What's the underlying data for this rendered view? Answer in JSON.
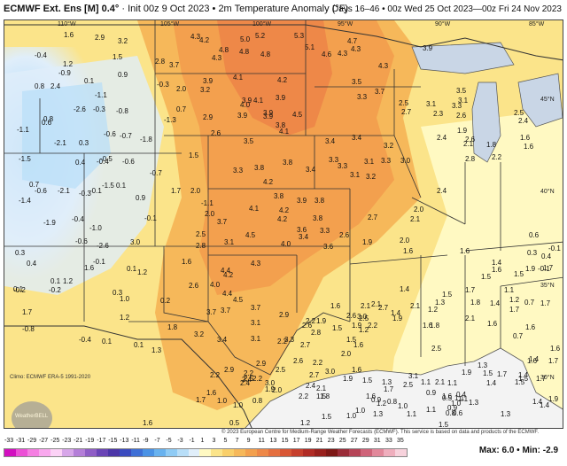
{
  "header": {
    "model": "ECMWF Ext. Ens [M] 0.4°",
    "init": "Init 00z 9 Oct 2023",
    "variable": "2m Temperature Anomaly (°F)",
    "valid": "Days 16–46 • 00z Wed 25 Oct 2023—00z Fri 24 Nov 2023"
  },
  "lon_labels": [
    "110°W",
    "105°W",
    "100°W",
    "95°W",
    "90°W",
    "85°W"
  ],
  "lat_labels": [
    "45°N",
    "40°N",
    "35°N",
    "30°N"
  ],
  "values": [
    {
      "t": "1.6"
    },
    {
      "t": "2.9"
    },
    {
      "t": "3.2"
    },
    {
      "t": "-0.4"
    },
    {
      "t": "1.5"
    },
    {
      "t": "1.2"
    },
    {
      "t": "-0.9"
    },
    {
      "t": "0.9"
    },
    {
      "t": "0.1"
    },
    {
      "t": "0.8"
    },
    {
      "t": "2.4"
    },
    {
      "t": "-0.3"
    },
    {
      "t": "-1.1"
    },
    {
      "t": "-2.6"
    },
    {
      "t": "-0.3"
    },
    {
      "t": "-0.8"
    },
    {
      "t": "0.8"
    },
    {
      "t": "-1.3"
    },
    {
      "t": "-1.1"
    },
    {
      "t": "0.6"
    },
    {
      "t": "-0.6"
    },
    {
      "t": "-0.7"
    },
    {
      "t": "-1.8"
    },
    {
      "t": "-2.1"
    },
    {
      "t": "0.3"
    },
    {
      "t": "-0.5"
    },
    {
      "t": "-1.5"
    },
    {
      "t": "0.4"
    },
    {
      "t": "-0.4"
    },
    {
      "t": "-0.6"
    },
    {
      "t": "-0.7"
    },
    {
      "t": "4.3"
    },
    {
      "t": "4.2"
    },
    {
      "t": "5.0"
    },
    {
      "t": "5.2"
    },
    {
      "t": "5.3"
    },
    {
      "t": "4.8"
    },
    {
      "t": "4.3"
    },
    {
      "t": "4.8"
    },
    {
      "t": "4.8"
    },
    {
      "t": "5.1"
    },
    {
      "t": "4.6"
    },
    {
      "t": "4.3"
    },
    {
      "t": "3.7"
    },
    {
      "t": "2.8"
    },
    {
      "t": "3.9"
    },
    {
      "t": "4.1"
    },
    {
      "t": "4.2"
    },
    {
      "t": "2.0"
    },
    {
      "t": "3.2"
    },
    {
      "t": "3.9"
    },
    {
      "t": "4.1"
    },
    {
      "t": "3.9"
    },
    {
      "t": "4.0"
    },
    {
      "t": "4.5"
    },
    {
      "t": "3.9"
    },
    {
      "t": "0.7"
    },
    {
      "t": "2.9"
    },
    {
      "t": "3.9"
    },
    {
      "t": "3.9"
    },
    {
      "t": "3.8"
    },
    {
      "t": "4.1"
    },
    {
      "t": "2.6"
    },
    {
      "t": "3.5"
    },
    {
      "t": "4.7"
    },
    {
      "t": "4.3"
    },
    {
      "t": "3.9"
    },
    {
      "t": "4.3"
    },
    {
      "t": "3.7"
    },
    {
      "t": "3.5"
    },
    {
      "t": "3.3"
    },
    {
      "t": "2.5"
    },
    {
      "t": "2.7"
    },
    {
      "t": "3.1"
    },
    {
      "t": "3.3"
    },
    {
      "t": "3.1"
    },
    {
      "t": "3.5"
    },
    {
      "t": "2.3"
    },
    {
      "t": "2.6"
    },
    {
      "t": "2.5"
    },
    {
      "t": "2.4"
    },
    {
      "t": "1.9"
    },
    {
      "t": "2.6"
    },
    {
      "t": "2.4"
    },
    {
      "t": "2.8"
    },
    {
      "t": "2.1"
    },
    {
      "t": "1.8"
    },
    {
      "t": "2.2"
    },
    {
      "t": "1.6"
    },
    {
      "t": "1.6"
    },
    {
      "t": "3.4"
    },
    {
      "t": "3.4"
    },
    {
      "t": "3.2"
    },
    {
      "t": "3.3"
    },
    {
      "t": "3.3"
    },
    {
      "t": "3.0"
    },
    {
      "t": "1.5"
    },
    {
      "t": "3.3"
    },
    {
      "t": "3.8"
    },
    {
      "t": "3.8"
    },
    {
      "t": "3.4"
    },
    {
      "t": "3.3"
    },
    {
      "t": "3.1"
    },
    {
      "t": "3.2"
    },
    {
      "t": "3.1"
    },
    {
      "t": "4.2"
    },
    {
      "t": "3.8"
    },
    {
      "t": "4.2"
    },
    {
      "t": "3.9"
    },
    {
      "t": "3.8"
    },
    {
      "t": "4.1"
    },
    {
      "t": "4.2"
    },
    {
      "t": "3.7"
    },
    {
      "t": "4.5"
    },
    {
      "t": "3.6"
    },
    {
      "t": "3.3"
    },
    {
      "t": "3.8"
    },
    {
      "t": "3.4"
    },
    {
      "t": "4.0"
    },
    {
      "t": "3.6"
    },
    {
      "t": "2.6"
    },
    {
      "t": "2.7"
    },
    {
      "t": "1.9"
    },
    {
      "t": "2.1"
    },
    {
      "t": "2.0"
    },
    {
      "t": "2.0"
    },
    {
      "t": "2.4"
    },
    {
      "t": "0.7"
    },
    {
      "t": "-0.6"
    },
    {
      "t": "-1.4"
    },
    {
      "t": "-2.1"
    },
    {
      "t": "-0.3"
    },
    {
      "t": "-0.1"
    },
    {
      "t": "-1.5"
    },
    {
      "t": "0.1"
    },
    {
      "t": "0.9"
    },
    {
      "t": "1.7"
    },
    {
      "t": "2.0"
    },
    {
      "t": "-1.1"
    },
    {
      "t": "-1.9"
    },
    {
      "t": "-0.4"
    },
    {
      "t": "-1.0"
    },
    {
      "t": "-0.1"
    },
    {
      "t": "-0.6"
    },
    {
      "t": "-2.6"
    },
    {
      "t": "3.0"
    },
    {
      "t": "2.5"
    },
    {
      "t": "2.8"
    },
    {
      "t": "3.1"
    },
    {
      "t": "2.0"
    },
    {
      "t": "-0.1"
    },
    {
      "t": "0.3"
    },
    {
      "t": "0.4"
    },
    {
      "t": "1.4"
    },
    {
      "t": "1.6"
    },
    {
      "t": "1.5"
    },
    {
      "t": "1.9"
    },
    {
      "t": "1.7"
    },
    {
      "t": "1.6"
    },
    {
      "t": "1.5"
    },
    {
      "t": "1.6"
    },
    {
      "t": "1.7"
    },
    {
      "t": "1.8"
    },
    {
      "t": "1.5"
    },
    {
      "t": "1.3"
    },
    {
      "t": "1.4"
    },
    {
      "t": "1.2"
    },
    {
      "t": "1.1"
    },
    {
      "t": "1.2"
    },
    {
      "t": "1.4"
    },
    {
      "t": "0.7"
    },
    {
      "t": "0.3"
    },
    {
      "t": "0.4"
    },
    {
      "t": "0.6"
    },
    {
      "t": "-0.1"
    },
    {
      "t": "-0.1"
    },
    {
      "t": "1.6"
    },
    {
      "t": "1.6"
    },
    {
      "t": "0.7"
    },
    {
      "t": "2.1"
    },
    {
      "t": "1.7"
    },
    {
      "t": "1.7"
    },
    {
      "t": "-0.2"
    },
    {
      "t": "0.1"
    },
    {
      "t": "1.2"
    },
    {
      "t": "-0.2"
    },
    {
      "t": "1.7"
    },
    {
      "t": "1.6"
    },
    {
      "t": "0.1"
    },
    {
      "t": "-0.8"
    },
    {
      "t": "1.0"
    },
    {
      "t": "0.3"
    },
    {
      "t": "1.8"
    },
    {
      "t": "3.2"
    },
    {
      "t": "3.4"
    },
    {
      "t": "1.2"
    },
    {
      "t": "0.1"
    },
    {
      "t": "0.1"
    },
    {
      "t": "-0.4"
    },
    {
      "t": "1.3"
    },
    {
      "t": "0.1"
    },
    {
      "t": "1.2"
    },
    {
      "t": "0.2"
    },
    {
      "t": "1.6"
    },
    {
      "t": "2.6"
    },
    {
      "t": "4.4"
    },
    {
      "t": "4.2"
    },
    {
      "t": "4.0"
    },
    {
      "t": "4.3"
    },
    {
      "t": "4.4"
    },
    {
      "t": "4.5"
    },
    {
      "t": "3.7"
    },
    {
      "t": "3.7"
    },
    {
      "t": "3.1"
    },
    {
      "t": "3.1"
    },
    {
      "t": "3.7"
    },
    {
      "t": "2.9"
    },
    {
      "t": "2.2"
    },
    {
      "t": "2.2"
    },
    {
      "t": "2.6"
    },
    {
      "t": "1.6"
    },
    {
      "t": "1.9"
    },
    {
      "t": "1.5"
    },
    {
      "t": "2.1"
    },
    {
      "t": "2.6"
    },
    {
      "t": "2.1"
    },
    {
      "t": "2.7"
    },
    {
      "t": "3.0"
    },
    {
      "t": "2.5"
    },
    {
      "t": "2.2"
    },
    {
      "t": "3.3"
    },
    {
      "t": "2.8"
    },
    {
      "t": "2.7"
    },
    {
      "t": "2.0"
    },
    {
      "t": "2.6"
    },
    {
      "t": "2.2"
    },
    {
      "t": "2.9"
    },
    {
      "t": "2.5"
    },
    {
      "t": "2.7"
    },
    {
      "t": "3.0"
    },
    {
      "t": "2.2"
    },
    {
      "t": "2.4"
    },
    {
      "t": "2.2"
    },
    {
      "t": "2.4"
    },
    {
      "t": "1.6"
    },
    {
      "t": "1.9"
    },
    {
      "t": "1.2"
    },
    {
      "t": "1.5"
    },
    {
      "t": "1.6"
    },
    {
      "t": "1.4"
    },
    {
      "t": "2.1"
    },
    {
      "t": "1.9"
    },
    {
      "t": "1.8"
    },
    {
      "t": "2.5"
    },
    {
      "t": "1.6"
    },
    {
      "t": "2.9"
    },
    {
      "t": "2.2"
    },
    {
      "t": "2.5"
    },
    {
      "t": "3.0"
    },
    {
      "t": "2.2"
    },
    {
      "t": "2.4"
    },
    {
      "t": "1.9"
    },
    {
      "t": "1.7"
    },
    {
      "t": "1.6"
    },
    {
      "t": "1.0"
    },
    {
      "t": "0.8"
    },
    {
      "t": "1.0"
    },
    {
      "t": "0.5"
    },
    {
      "t": "1.6"
    },
    {
      "t": "1.2"
    },
    {
      "t": "1.5"
    },
    {
      "t": "1.0"
    },
    {
      "t": "1.3"
    },
    {
      "t": "1.0"
    },
    {
      "t": "0.9"
    },
    {
      "t": "1.0"
    },
    {
      "t": "0.8"
    },
    {
      "t": "1.1"
    },
    {
      "t": "2.5"
    },
    {
      "t": "3.1"
    },
    {
      "t": "2.1"
    },
    {
      "t": "0.9"
    },
    {
      "t": "1.1"
    },
    {
      "t": "1.1"
    },
    {
      "t": "0.5"
    },
    {
      "t": "1.5"
    },
    {
      "t": "1.4"
    },
    {
      "t": "1.6"
    },
    {
      "t": "1.1"
    },
    {
      "t": "1.5"
    },
    {
      "t": "2.0"
    },
    {
      "t": "2.1"
    },
    {
      "t": "1.5"
    },
    {
      "t": "1.8"
    },
    {
      "t": "1.9"
    },
    {
      "t": "1.3"
    },
    {
      "t": "1.5"
    },
    {
      "t": "1.6"
    },
    {
      "t": "1.2"
    },
    {
      "t": "1.7"
    },
    {
      "t": "1.9"
    },
    {
      "t": "1.3"
    },
    {
      "t": "1.5"
    },
    {
      "t": "1.7"
    },
    {
      "t": "1.1"
    },
    {
      "t": "1.3"
    },
    {
      "t": "0.4"
    },
    {
      "t": "1.1"
    },
    {
      "t": "1.0"
    },
    {
      "t": "0.9"
    },
    {
      "t": "0.8"
    },
    {
      "t": "0.6"
    },
    {
      "t": "1.4"
    },
    {
      "t": "1.3"
    },
    {
      "t": "1.5"
    },
    {
      "t": "1.4"
    },
    {
      "t": "1.7"
    },
    {
      "t": "1.9"
    },
    {
      "t": "1.4"
    },
    {
      "t": "1.4"
    },
    {
      "t": "1.7"
    },
    {
      "t": "1.6"
    },
    {
      "t": "1.6"
    }
  ],
  "climo": "Climo: ECMWF ERA-5 1991-2020",
  "copyright": "© 2023 European Centre for Medium-Range Weather Forecasts (ECMWF). This service is based on data and products of the ECMWF.",
  "scale": [
    "-33",
    "-31",
    "-29",
    "-27",
    "-25",
    "-23",
    "-21",
    "-19",
    "-17",
    "-15",
    "-13",
    "-11",
    "-9",
    "-7",
    "-5",
    "-3",
    "-1",
    "1",
    "3",
    "5",
    "7",
    "9",
    "11",
    "13",
    "15",
    "17",
    "19",
    "21",
    "23",
    "25",
    "27",
    "29",
    "31",
    "33",
    "35"
  ],
  "scale_colors": [
    "#d20fc0",
    "#ec4fd6",
    "#f57ee2",
    "#f9a8ee",
    "#fcd2f6",
    "#d7a6e9",
    "#b47ed8",
    "#8f5dc6",
    "#6a44b6",
    "#4c36a8",
    "#3b4bbf",
    "#3e6fd6",
    "#4a92e5",
    "#68b2ef",
    "#8fcbf5",
    "#b8def8",
    "#e0eefa",
    "#fff9c2",
    "#fbe48a",
    "#f9cf6a",
    "#f6b85a",
    "#f3a04e",
    "#ee8848",
    "#e46f3f",
    "#d85635",
    "#c63f2d",
    "#b02b25",
    "#98201d",
    "#7d1816",
    "#9a2c38",
    "#b54457",
    "#cf6379",
    "#e2889b",
    "#efaebd",
    "#f7d2dc"
  ],
  "maxmin": "Max: 6.0 • Min: -2.9",
  "logo_text": "WeatherBELL"
}
